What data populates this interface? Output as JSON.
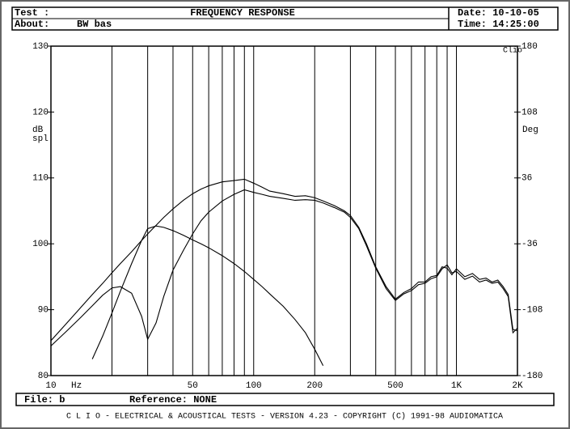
{
  "header": {
    "test": "Test :",
    "about": "About:",
    "about_value": "BW bas",
    "date": "Date: 10-10-05",
    "time": "Time: 14:25:00"
  },
  "footer": {
    "file": "File: b",
    "reference": "Reference: NONE",
    "credits": "C L I O - ELECTRICAL & ACOUSTICAL TESTS - VERSION 4.23 - COPYRIGHT (C) 1991-98 AUDIOMATICA"
  },
  "chart_data": {
    "type": "line",
    "title": "FREQUENCY RESPONSE",
    "annotation": "Clio",
    "xlabel": "Hz",
    "ylabel": [
      "dB",
      "spl"
    ],
    "y2label": "Deg",
    "xscale": "log",
    "xlim": [
      10,
      2000
    ],
    "xticks": [
      10,
      50,
      100,
      200,
      500,
      {
        "value": 1000,
        "label": "1K"
      },
      {
        "value": 2000,
        "label": "2K"
      }
    ],
    "xgrid": [
      20,
      30,
      40,
      60,
      70,
      80,
      90,
      300,
      400,
      600,
      700,
      800,
      900
    ],
    "ylim": [
      80,
      130
    ],
    "yticks": [
      80,
      90,
      100,
      110,
      120,
      130
    ],
    "y2lim": [
      -180,
      180
    ],
    "y2ticks": [
      -180,
      -108,
      -36,
      36,
      108,
      180
    ],
    "x": [
      10,
      12,
      14,
      16,
      18,
      20,
      22,
      25,
      28,
      30,
      33,
      36,
      40,
      45,
      50,
      55,
      60,
      70,
      80,
      90,
      100,
      110,
      120,
      140,
      160,
      180,
      200,
      220,
      250,
      280,
      300,
      330,
      360,
      400,
      450,
      500,
      550,
      600,
      650,
      700,
      750,
      800,
      850,
      900,
      950,
      1000,
      1100,
      1200,
      1300,
      1400,
      1500,
      1600,
      1700,
      1800,
      1900,
      2000
    ],
    "series": [
      {
        "color": "#000000",
        "values": [
          85.3,
          88,
          90.3,
          92.3,
          94,
          95.6,
          97,
          98.8,
          100.5,
          101.5,
          102.8,
          104,
          105.3,
          106.6,
          107.6,
          108.3,
          108.8,
          109.4,
          109.6,
          109.8,
          109.2,
          108.6,
          108,
          107.6,
          107.2,
          107.3,
          107,
          106.5,
          105.8,
          105,
          104.3,
          102.5,
          100,
          96.5,
          93.5,
          91.6,
          92.6,
          93.2,
          94.2,
          94.2,
          95,
          95.2,
          96.5,
          96.3,
          95.3,
          96.2,
          95,
          95.5,
          94.6,
          94.8,
          94.2,
          94.5,
          93.5,
          92.3,
          87,
          86.8
        ]
      },
      {
        "color": "#000000",
        "values": [
          84.5,
          86.8,
          88.8,
          90.6,
          92.2,
          93.3,
          93.5,
          92.5,
          89,
          85.5,
          88,
          92,
          96,
          99,
          101.5,
          103.5,
          104.8,
          106.5,
          107.5,
          108.2,
          107.8,
          107.5,
          107.2,
          106.9,
          106.6,
          106.7,
          106.6,
          106.2,
          105.5,
          104.8,
          104,
          102.3,
          99.7,
          96.3,
          93.2,
          91.4,
          92.4,
          92.9,
          93.8,
          94,
          94.7,
          95,
          96.2,
          96.8,
          95.6,
          95.8,
          94.6,
          95.1,
          94.2,
          94.5,
          94,
          94.2,
          93.2,
          92,
          86.5,
          87.2
        ]
      },
      {
        "color": "#000000",
        "values": [
          null,
          null,
          null,
          82.5,
          86,
          89.5,
          92.8,
          97,
          100.5,
          102.3,
          102.7,
          102.5,
          102,
          101.3,
          100.6,
          100,
          99.4,
          98.2,
          97,
          95.8,
          94.6,
          93.5,
          92.4,
          90.5,
          88.5,
          86.5,
          84,
          81.5,
          null,
          null,
          null,
          null,
          null,
          null,
          null,
          null,
          null,
          null,
          null,
          null,
          null,
          null,
          null,
          null,
          null,
          null,
          null,
          null,
          null,
          null,
          null,
          null,
          null,
          null,
          null,
          null
        ]
      }
    ]
  }
}
